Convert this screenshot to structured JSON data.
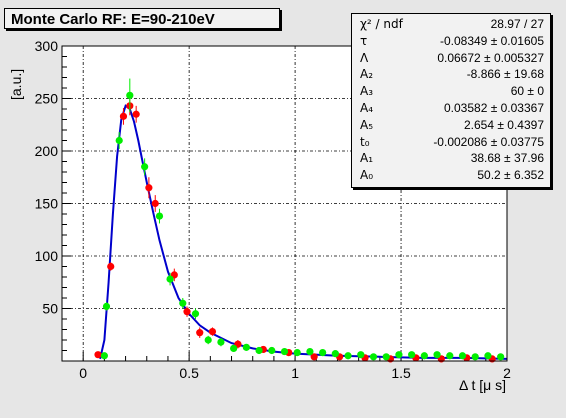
{
  "chart_data": {
    "type": "scatter",
    "title": "Monte Carlo RF:  E=90-210eV",
    "xlabel": "Δ t [μ s]",
    "ylabel": "[a.u.]",
    "xlim": [
      -0.1,
      2.0
    ],
    "ylim": [
      0,
      300
    ],
    "x_ticks": [
      0,
      0.5,
      1,
      1.5,
      2
    ],
    "x_tick_labels": [
      "0",
      "0.5",
      "1",
      "1.5",
      "2"
    ],
    "y_ticks": [
      50,
      100,
      150,
      200,
      250,
      300
    ],
    "y_tick_labels": [
      "50",
      "100",
      "150",
      "200",
      "250",
      "300"
    ],
    "grid": true,
    "series": [
      {
        "color": "#ff0000",
        "points": [
          {
            "x": 0.07,
            "y": 6,
            "err": 2
          },
          {
            "x": 0.13,
            "y": 90,
            "err": 4
          },
          {
            "x": 0.19,
            "y": 233,
            "err": 8
          },
          {
            "x": 0.22,
            "y": 243,
            "err": 9
          },
          {
            "x": 0.25,
            "y": 235,
            "err": 8
          },
          {
            "x": 0.31,
            "y": 165,
            "err": 10
          },
          {
            "x": 0.34,
            "y": 150,
            "err": 8
          },
          {
            "x": 0.43,
            "y": 82,
            "err": 6
          },
          {
            "x": 0.49,
            "y": 47,
            "err": 5
          },
          {
            "x": 0.55,
            "y": 27,
            "err": 5
          },
          {
            "x": 0.61,
            "y": 28,
            "err": 4
          },
          {
            "x": 0.73,
            "y": 16,
            "err": 4
          },
          {
            "x": 0.85,
            "y": 11,
            "err": 3
          },
          {
            "x": 0.97,
            "y": 8,
            "err": 3
          },
          {
            "x": 1.09,
            "y": 4,
            "err": 2
          },
          {
            "x": 1.21,
            "y": 4,
            "err": 2
          },
          {
            "x": 1.33,
            "y": 3,
            "err": 2
          },
          {
            "x": 1.45,
            "y": 2,
            "err": 2
          },
          {
            "x": 1.57,
            "y": 3,
            "err": 2
          },
          {
            "x": 1.69,
            "y": 2,
            "err": 2
          },
          {
            "x": 1.81,
            "y": 3,
            "err": 2
          },
          {
            "x": 1.93,
            "y": 2,
            "err": 2
          }
        ]
      },
      {
        "color": "#00ee00",
        "points": [
          {
            "x": 0.1,
            "y": 5,
            "err": 2
          },
          {
            "x": 0.11,
            "y": 52,
            "err": 4
          },
          {
            "x": 0.17,
            "y": 210,
            "err": 8
          },
          {
            "x": 0.22,
            "y": 253,
            "err": 16
          },
          {
            "x": 0.29,
            "y": 185,
            "err": 8
          },
          {
            "x": 0.36,
            "y": 138,
            "err": 7
          },
          {
            "x": 0.41,
            "y": 78,
            "err": 6
          },
          {
            "x": 0.47,
            "y": 55,
            "err": 5
          },
          {
            "x": 0.53,
            "y": 45,
            "err": 5
          },
          {
            "x": 0.59,
            "y": 20,
            "err": 4
          },
          {
            "x": 0.65,
            "y": 18,
            "err": 4
          },
          {
            "x": 0.71,
            "y": 12,
            "err": 3
          },
          {
            "x": 0.77,
            "y": 13,
            "err": 3
          },
          {
            "x": 0.83,
            "y": 10,
            "err": 3
          },
          {
            "x": 0.89,
            "y": 10,
            "err": 3
          },
          {
            "x": 0.95,
            "y": 9,
            "err": 3
          },
          {
            "x": 1.01,
            "y": 8,
            "err": 3
          },
          {
            "x": 1.07,
            "y": 9,
            "err": 3
          },
          {
            "x": 1.13,
            "y": 8,
            "err": 3
          },
          {
            "x": 1.19,
            "y": 7,
            "err": 2
          },
          {
            "x": 1.25,
            "y": 5,
            "err": 2
          },
          {
            "x": 1.31,
            "y": 6,
            "err": 2
          },
          {
            "x": 1.37,
            "y": 4,
            "err": 2
          },
          {
            "x": 1.43,
            "y": 4,
            "err": 2
          },
          {
            "x": 1.49,
            "y": 6,
            "err": 2
          },
          {
            "x": 1.55,
            "y": 6,
            "err": 2
          },
          {
            "x": 1.61,
            "y": 5,
            "err": 2
          },
          {
            "x": 1.67,
            "y": 6,
            "err": 2
          },
          {
            "x": 1.73,
            "y": 5,
            "err": 2
          },
          {
            "x": 1.79,
            "y": 5,
            "err": 2
          },
          {
            "x": 1.85,
            "y": 4,
            "err": 2
          },
          {
            "x": 1.91,
            "y": 5,
            "err": 2
          },
          {
            "x": 1.97,
            "y": 4,
            "err": 2
          }
        ]
      }
    ],
    "fit_curve": {
      "color": "#0000cc",
      "x": [
        0.08,
        0.1,
        0.12,
        0.14,
        0.16,
        0.18,
        0.2,
        0.22,
        0.24,
        0.26,
        0.28,
        0.3,
        0.33,
        0.36,
        0.4,
        0.45,
        0.5,
        0.55,
        0.6,
        0.7,
        0.8,
        0.9,
        1.0,
        1.2,
        1.4,
        1.6,
        1.8,
        2.0
      ],
      "y": [
        2,
        20,
        75,
        140,
        195,
        230,
        243,
        240,
        228,
        210,
        190,
        170,
        142,
        115,
        85,
        60,
        45,
        34,
        27,
        17,
        12,
        9,
        7,
        5,
        4,
        3,
        3,
        2
      ]
    },
    "stats": [
      {
        "name": "χ² / ndf",
        "value": "28.97 / 27"
      },
      {
        "name": "τ",
        "value": "-0.08349 ± 0.01605"
      },
      {
        "name": "Λ",
        "value": "0.06672 ± 0.005327"
      },
      {
        "name": "A₂",
        "value": "-8.866 ± 19.68"
      },
      {
        "name": "A₃",
        "value": "60 ±      0"
      },
      {
        "name": "A₄",
        "value": "0.03582 ± 0.03367"
      },
      {
        "name": "A₅",
        "value": "2.654 ± 0.4397"
      },
      {
        "name": "t₀",
        "value": "-0.002086 ± 0.03775"
      },
      {
        "name": "A₁",
        "value": "38.68 ± 37.96"
      },
      {
        "name": "A₀",
        "value": "50.2 ± 6.352"
      }
    ]
  }
}
